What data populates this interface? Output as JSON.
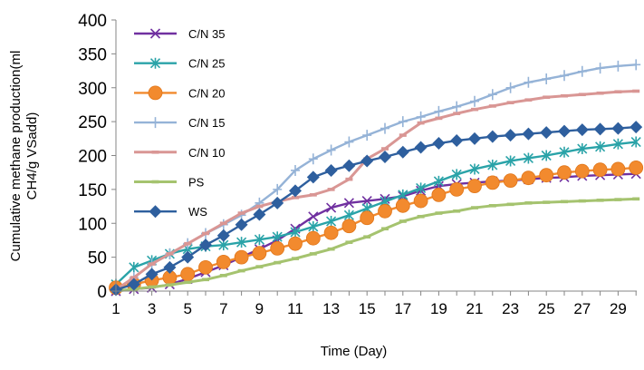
{
  "chart_data": {
    "type": "line",
    "title": "",
    "xlabel": "Time (Day)",
    "ylabel_lines": [
      "Cumulative methane production(ml",
      "CH4/g VSadd)"
    ],
    "xlim": [
      1,
      30
    ],
    "ylim": [
      0,
      400
    ],
    "yticks": [
      0,
      50,
      100,
      150,
      200,
      250,
      300,
      350,
      400
    ],
    "xticks": [
      1,
      3,
      5,
      7,
      9,
      11,
      13,
      15,
      17,
      19,
      21,
      23,
      25,
      27,
      29
    ],
    "grid": false,
    "legend_position": "top-left",
    "x": [
      1,
      2,
      3,
      4,
      5,
      6,
      7,
      8,
      9,
      10,
      11,
      12,
      13,
      14,
      15,
      16,
      17,
      18,
      19,
      20,
      21,
      22,
      23,
      24,
      25,
      26,
      27,
      28,
      29,
      30
    ],
    "series": [
      {
        "name": "C/N 35",
        "color": "#7030A0",
        "marker": "x",
        "values": [
          0,
          3,
          5,
          10,
          18,
          28,
          38,
          50,
          62,
          75,
          92,
          110,
          123,
          130,
          133,
          136,
          140,
          148,
          155,
          158,
          160,
          162,
          163,
          165,
          167,
          168,
          170,
          171,
          172,
          173
        ]
      },
      {
        "name": "C/N 25",
        "color": "#2AA3A8",
        "marker": "star",
        "values": [
          10,
          35,
          45,
          55,
          62,
          66,
          68,
          72,
          76,
          80,
          87,
          95,
          103,
          112,
          122,
          132,
          142,
          152,
          162,
          172,
          180,
          186,
          192,
          196,
          200,
          205,
          210,
          213,
          217,
          220
        ]
      },
      {
        "name": "C/N 20",
        "color": "#F28A2E",
        "marker": "circle",
        "values": [
          5,
          10,
          16,
          20,
          25,
          35,
          43,
          50,
          56,
          63,
          70,
          78,
          86,
          96,
          108,
          118,
          126,
          133,
          142,
          150,
          155,
          160,
          163,
          167,
          171,
          175,
          177,
          179,
          180,
          182
        ]
      },
      {
        "name": "C/N 15",
        "color": "#95B3D7",
        "marker": "plus",
        "values": [
          2,
          20,
          40,
          55,
          70,
          85,
          98,
          112,
          130,
          150,
          178,
          195,
          208,
          220,
          230,
          240,
          250,
          257,
          265,
          272,
          280,
          290,
          300,
          308,
          313,
          318,
          324,
          329,
          332,
          334
        ]
      },
      {
        "name": "C/N 10",
        "color": "#D99694",
        "marker": "dash",
        "values": [
          2,
          20,
          40,
          55,
          70,
          85,
          100,
          115,
          125,
          132,
          138,
          142,
          150,
          165,
          195,
          210,
          230,
          248,
          255,
          262,
          268,
          273,
          278,
          282,
          286,
          288,
          290,
          292,
          294,
          295
        ]
      },
      {
        "name": "PS",
        "color": "#A5C36F",
        "marker": "dash",
        "values": [
          0,
          3,
          6,
          9,
          13,
          17,
          23,
          30,
          36,
          42,
          48,
          55,
          62,
          72,
          80,
          92,
          103,
          110,
          115,
          118,
          123,
          126,
          128,
          130,
          131,
          132,
          133,
          134,
          135,
          136
        ]
      },
      {
        "name": "WS",
        "color": "#2E5F9E",
        "marker": "diamond",
        "values": [
          2,
          10,
          25,
          35,
          50,
          68,
          82,
          98,
          113,
          130,
          148,
          168,
          178,
          185,
          192,
          198,
          205,
          212,
          218,
          222,
          225,
          228,
          230,
          232,
          234,
          236,
          238,
          239,
          240,
          242
        ]
      }
    ]
  }
}
